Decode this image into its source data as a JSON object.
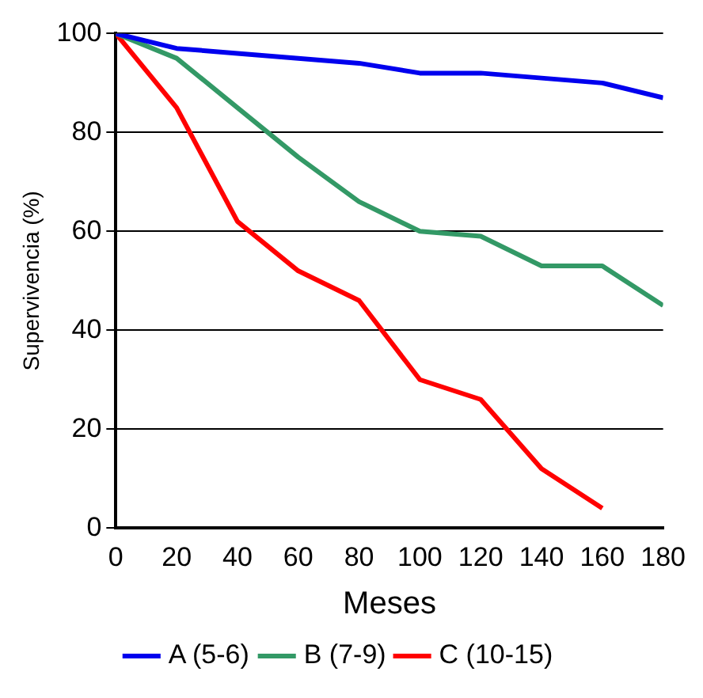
{
  "chart_data": {
    "type": "line",
    "xlabel": "Meses",
    "ylabel": "Supervivencia (%)",
    "x": [
      0,
      20,
      40,
      60,
      80,
      100,
      120,
      140,
      160,
      180
    ],
    "series": [
      {
        "name": "A (5-6)",
        "color": "#0000ee",
        "values": [
          100,
          97,
          96,
          95,
          94,
          92,
          92,
          91,
          90,
          87
        ]
      },
      {
        "name": "B (7-9)",
        "color": "#339966",
        "values": [
          100,
          95,
          85,
          75,
          66,
          60,
          59,
          53,
          53,
          45
        ]
      },
      {
        "name": "C (10-15)",
        "color": "#ff0000",
        "values": [
          100,
          85,
          62,
          52,
          46,
          30,
          26,
          12,
          4,
          null
        ]
      }
    ],
    "xlim": [
      0,
      180
    ],
    "xticks": [
      0,
      20,
      40,
      60,
      80,
      100,
      120,
      140,
      160,
      180
    ],
    "ylim": [
      0,
      100
    ],
    "yticks": [
      0,
      20,
      40,
      60,
      80,
      100
    ],
    "grid": "y",
    "legend": "bottom",
    "marker": "none",
    "line_style": "solid"
  }
}
